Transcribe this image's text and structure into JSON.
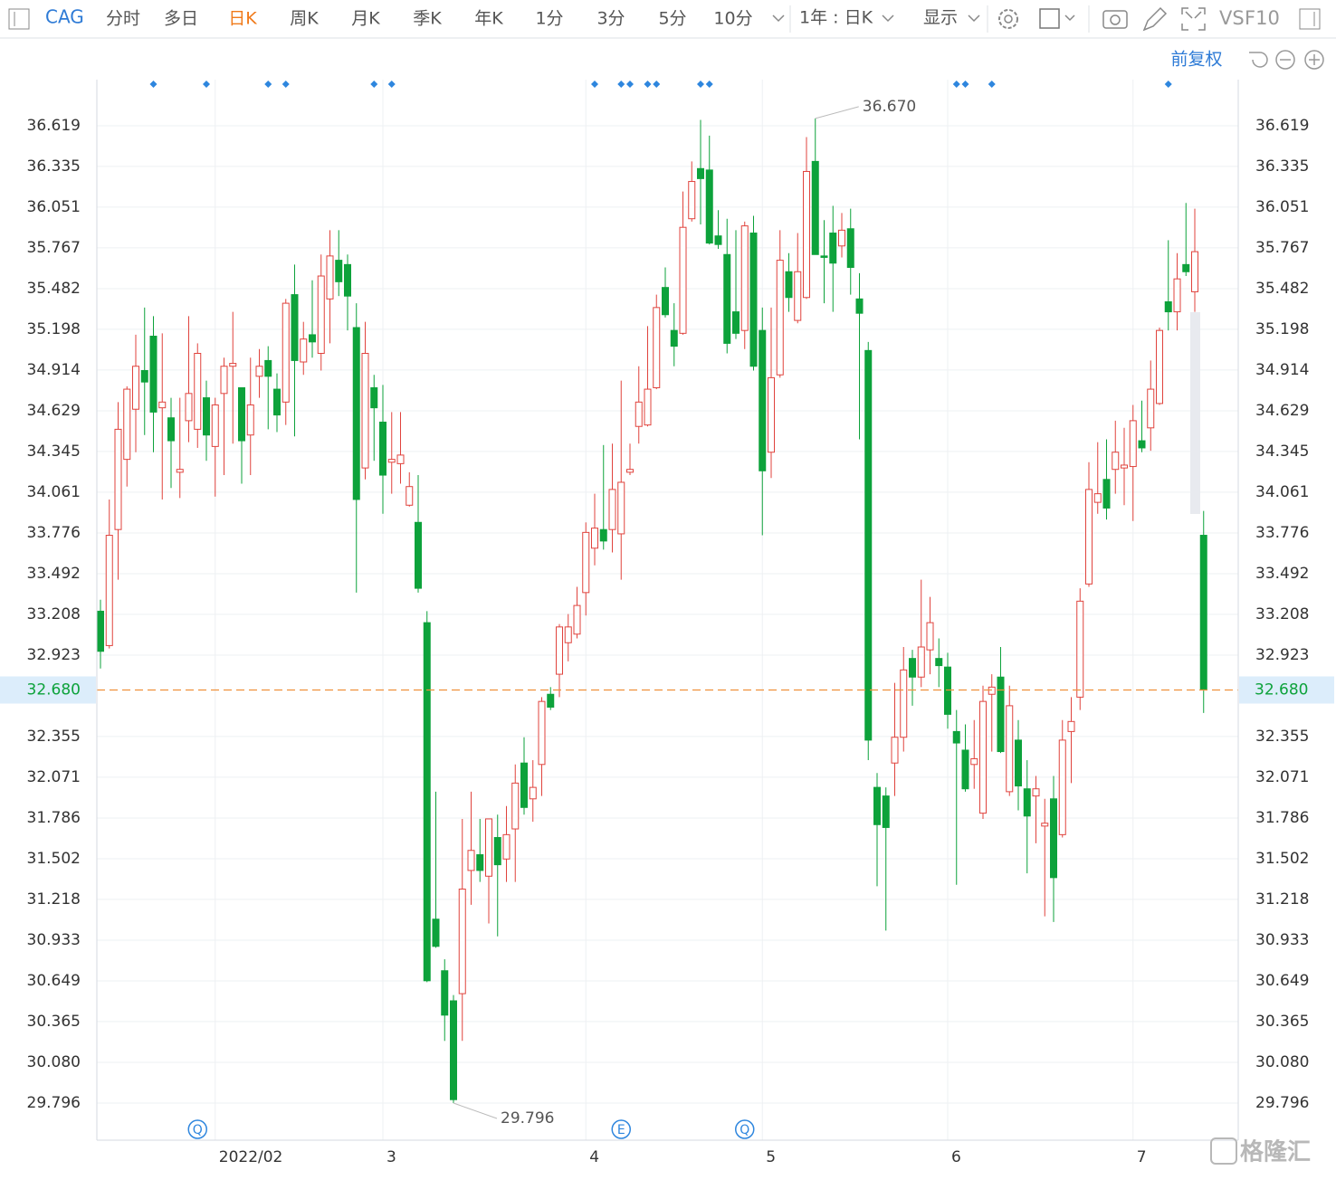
{
  "toolbar": {
    "symbol": "CAG",
    "periods": [
      "分时",
      "多日",
      "日K",
      "周K",
      "月K",
      "季K",
      "年K",
      "1分",
      "3分",
      "5分",
      "10分"
    ],
    "active_period": 2,
    "range": "1年 : 日K",
    "display": "显示",
    "vs": "VS",
    "f10": "F10"
  },
  "adjust": "前复权",
  "watermark": "格隆汇",
  "chart_data": {
    "type": "candlestick",
    "categories": [
      null,
      null,
      null,
      null,
      null,
      null,
      null,
      null,
      null,
      null,
      null,
      null,
      null,
      "2022/02",
      null,
      null,
      null,
      null,
      null,
      null,
      null,
      null,
      null,
      null,
      null,
      null,
      null,
      null,
      null,
      null,
      null,
      null,
      "3",
      null,
      null,
      null,
      null,
      null,
      null,
      null,
      null,
      null,
      null,
      null,
      null,
      null,
      null,
      null,
      null,
      null,
      null,
      null,
      null,
      null,
      null,
      "4",
      null,
      null,
      null,
      null,
      null,
      null,
      null,
      null,
      null,
      null,
      null,
      null,
      null,
      null,
      null,
      null,
      null,
      null,
      null,
      "5",
      null,
      null,
      null,
      null,
      null,
      null,
      null,
      null,
      null,
      null,
      null,
      null,
      null,
      null,
      null,
      null,
      null,
      null,
      null,
      null,
      "6",
      null,
      null,
      null,
      null,
      null,
      null,
      null,
      null,
      null,
      null,
      null,
      null,
      null,
      null,
      null,
      null,
      null,
      null,
      null,
      null,
      "7",
      null,
      null,
      null,
      null,
      null,
      null,
      null,
      null
    ],
    "open": [
      33.23,
      32.99,
      33.8,
      34.29,
      34.64,
      34.91,
      35.15,
      34.65,
      34.58,
      34.2,
      34.56,
      34.5,
      34.72,
      34.38,
      34.75,
      34.94,
      34.79,
      34.46,
      34.87,
      34.98,
      34.78,
      34.69,
      35.44,
      34.97,
      35.16,
      35.03,
      35.41,
      35.68,
      35.65,
      35.21,
      34.23,
      34.79,
      34.55,
      34.27,
      34.26,
      33.97,
      33.85,
      33.15,
      31.08,
      30.72,
      30.51,
      30.56,
      31.42,
      31.53,
      31.38,
      31.65,
      31.5,
      31.71,
      32.17,
      31.92,
      32.16,
      32.65,
      32.79,
      33.01,
      33.07,
      33.36,
      33.67,
      33.8,
      33.8,
      33.77,
      34.2,
      34.52,
      34.53,
      34.79,
      35.49,
      35.19,
      35.17,
      35.97,
      36.32,
      36.31,
      35.85,
      35.72,
      35.32,
      35.19,
      35.87,
      35.19,
      34.34,
      34.88,
      35.6,
      35.26,
      35.42,
      36.37,
      35.71,
      35.87,
      35.78,
      35.9,
      35.41,
      35.05,
      32.0,
      31.94,
      32.17,
      32.35,
      32.9,
      32.77,
      32.96,
      32.9,
      32.84,
      32.39,
      32.26,
      32.16,
      31.82,
      32.65,
      32.77,
      31.97,
      32.33,
      31.99,
      31.94,
      31.73,
      31.92,
      31.67,
      32.39,
      32.63,
      33.42,
      33.99,
      34.15,
      34.22,
      34.23,
      34.24,
      34.42,
      34.51,
      34.68,
      35.39,
      35.32,
      35.65,
      35.46,
      33.76
    ],
    "high": [
      33.31,
      34.01,
      34.69,
      34.8,
      35.16,
      35.35,
      35.29,
      35.17,
      34.72,
      34.72,
      35.29,
      35.1,
      34.84,
      34.72,
      35.0,
      35.32,
      34.79,
      35.0,
      35.06,
      35.08,
      34.89,
      35.41,
      35.65,
      35.25,
      35.54,
      35.72,
      35.89,
      35.89,
      35.72,
      35.38,
      35.25,
      34.88,
      34.81,
      34.62,
      34.62,
      34.2,
      34.18,
      33.23,
      31.97,
      30.8,
      30.55,
      31.78,
      31.97,
      31.78,
      31.78,
      31.81,
      31.87,
      32.16,
      32.35,
      32.19,
      32.63,
      32.7,
      33.14,
      33.21,
      33.4,
      33.85,
      34.05,
      34.39,
      34.4,
      34.84,
      34.4,
      34.94,
      35.22,
      35.44,
      35.63,
      35.38,
      36.16,
      36.37,
      36.66,
      36.55,
      36.03,
      35.97,
      35.89,
      35.95,
      35.99,
      35.35,
      35.35,
      35.89,
      35.73,
      35.87,
      36.54,
      36.67,
      35.96,
      36.06,
      36.01,
      36.04,
      35.59,
      35.11,
      32.1,
      32.0,
      32.73,
      32.98,
      32.96,
      33.45,
      33.33,
      33.04,
      32.94,
      32.54,
      32.44,
      32.47,
      32.71,
      32.79,
      32.98,
      32.71,
      32.47,
      32.19,
      32.08,
      31.92,
      32.08,
      32.47,
      32.63,
      33.39,
      34.27,
      34.41,
      34.43,
      34.56,
      34.51,
      34.67,
      34.7,
      34.98,
      35.21,
      35.82,
      35.73,
      36.08,
      36.04,
      33.93
    ],
    "low": [
      32.83,
      32.97,
      33.45,
      34.1,
      34.34,
      34.46,
      34.34,
      34.01,
      34.09,
      34.02,
      34.41,
      34.37,
      34.28,
      34.03,
      34.18,
      34.4,
      34.12,
      34.18,
      34.72,
      34.5,
      34.48,
      34.53,
      34.45,
      34.88,
      35.0,
      34.91,
      35.1,
      35.43,
      35.19,
      33.36,
      34.15,
      34.28,
      33.91,
      34.05,
      34.12,
      33.96,
      33.36,
      30.64,
      30.88,
      30.23,
      29.796,
      30.23,
      31.18,
      31.34,
      31.05,
      30.96,
      31.34,
      31.34,
      31.81,
      31.76,
      31.94,
      32.54,
      32.63,
      32.88,
      33.04,
      33.2,
      33.55,
      33.66,
      33.64,
      33.45,
      34.18,
      34.4,
      34.52,
      34.78,
      35.28,
      34.94,
      35.16,
      35.95,
      35.93,
      35.79,
      35.76,
      35.03,
      35.13,
      35.06,
      34.91,
      33.76,
      34.16,
      34.86,
      35.32,
      35.24,
      35.41,
      35.72,
      35.38,
      35.32,
      35.7,
      35.44,
      34.43,
      32.19,
      31.31,
      31.0,
      31.94,
      32.25,
      32.57,
      32.7,
      32.79,
      32.7,
      32.41,
      31.32,
      31.97,
      31.99,
      31.78,
      32.25,
      32.24,
      31.94,
      31.84,
      31.4,
      31.61,
      31.1,
      31.06,
      31.65,
      32.03,
      32.54,
      33.4,
      33.91,
      33.87,
      34.05,
      33.97,
      33.86,
      34.34,
      34.35,
      34.67,
      35.19,
      35.19,
      35.57,
      35.32,
      32.52
    ],
    "close": [
      32.95,
      33.76,
      34.5,
      34.78,
      34.94,
      34.83,
      34.62,
      34.69,
      34.42,
      34.22,
      34.75,
      35.03,
      34.46,
      34.67,
      34.94,
      34.96,
      34.42,
      34.67,
      34.94,
      34.87,
      34.6,
      35.38,
      34.98,
      35.13,
      35.11,
      35.57,
      35.71,
      35.53,
      35.43,
      34.01,
      35.03,
      34.65,
      34.18,
      34.29,
      34.32,
      34.1,
      33.39,
      30.65,
      30.89,
      30.41,
      29.82,
      31.29,
      31.56,
      31.42,
      31.78,
      31.46,
      31.67,
      32.03,
      31.86,
      32.0,
      32.6,
      32.56,
      33.12,
      33.12,
      33.27,
      33.78,
      33.81,
      33.72,
      34.08,
      34.13,
      34.22,
      34.69,
      34.78,
      35.35,
      35.3,
      35.08,
      35.91,
      36.23,
      36.25,
      35.8,
      35.79,
      35.1,
      35.17,
      35.92,
      34.94,
      34.21,
      34.86,
      35.68,
      35.42,
      35.6,
      36.3,
      35.72,
      35.7,
      35.66,
      35.89,
      35.63,
      35.31,
      32.33,
      31.74,
      31.72,
      32.35,
      32.82,
      32.77,
      32.98,
      33.15,
      32.85,
      32.51,
      32.31,
      31.99,
      32.2,
      32.6,
      32.7,
      32.25,
      32.57,
      32.01,
      31.8,
      31.99,
      31.75,
      31.37,
      32.33,
      32.46,
      33.3,
      34.08,
      34.05,
      33.95,
      34.34,
      34.25,
      34.56,
      34.37,
      34.78,
      35.19,
      35.32,
      35.55,
      35.6,
      35.74,
      32.68
    ],
    "up_color": "#e0433d",
    "down_color": "#0da23b",
    "ylim": [
      29.537,
      36.941
    ],
    "yticks": [
      36.619,
      36.335,
      36.051,
      35.767,
      35.482,
      35.198,
      34.914,
      34.629,
      34.345,
      34.061,
      33.776,
      33.492,
      33.208,
      32.923,
      32.355,
      32.071,
      31.786,
      31.502,
      31.218,
      30.933,
      30.649,
      30.365,
      {
        "value": 30.08,
        "label": "30.080"
      },
      29.796
    ],
    "grid": true,
    "last_price": {
      "value": 32.68,
      "label": "32.680"
    },
    "annotations": [
      {
        "index": 81,
        "value": 36.67,
        "label": "36.670"
      },
      {
        "index": 40,
        "value": 29.796,
        "label": "29.796"
      }
    ],
    "events": [
      {
        "index": 11,
        "label": "Q"
      },
      {
        "index": 59,
        "label": "E"
      },
      {
        "index": 73,
        "label": "Q"
      }
    ],
    "top_markers": [
      6,
      12,
      19,
      21,
      31,
      33,
      56,
      59,
      60,
      62,
      63,
      68,
      69,
      97,
      98,
      101,
      121
    ]
  }
}
